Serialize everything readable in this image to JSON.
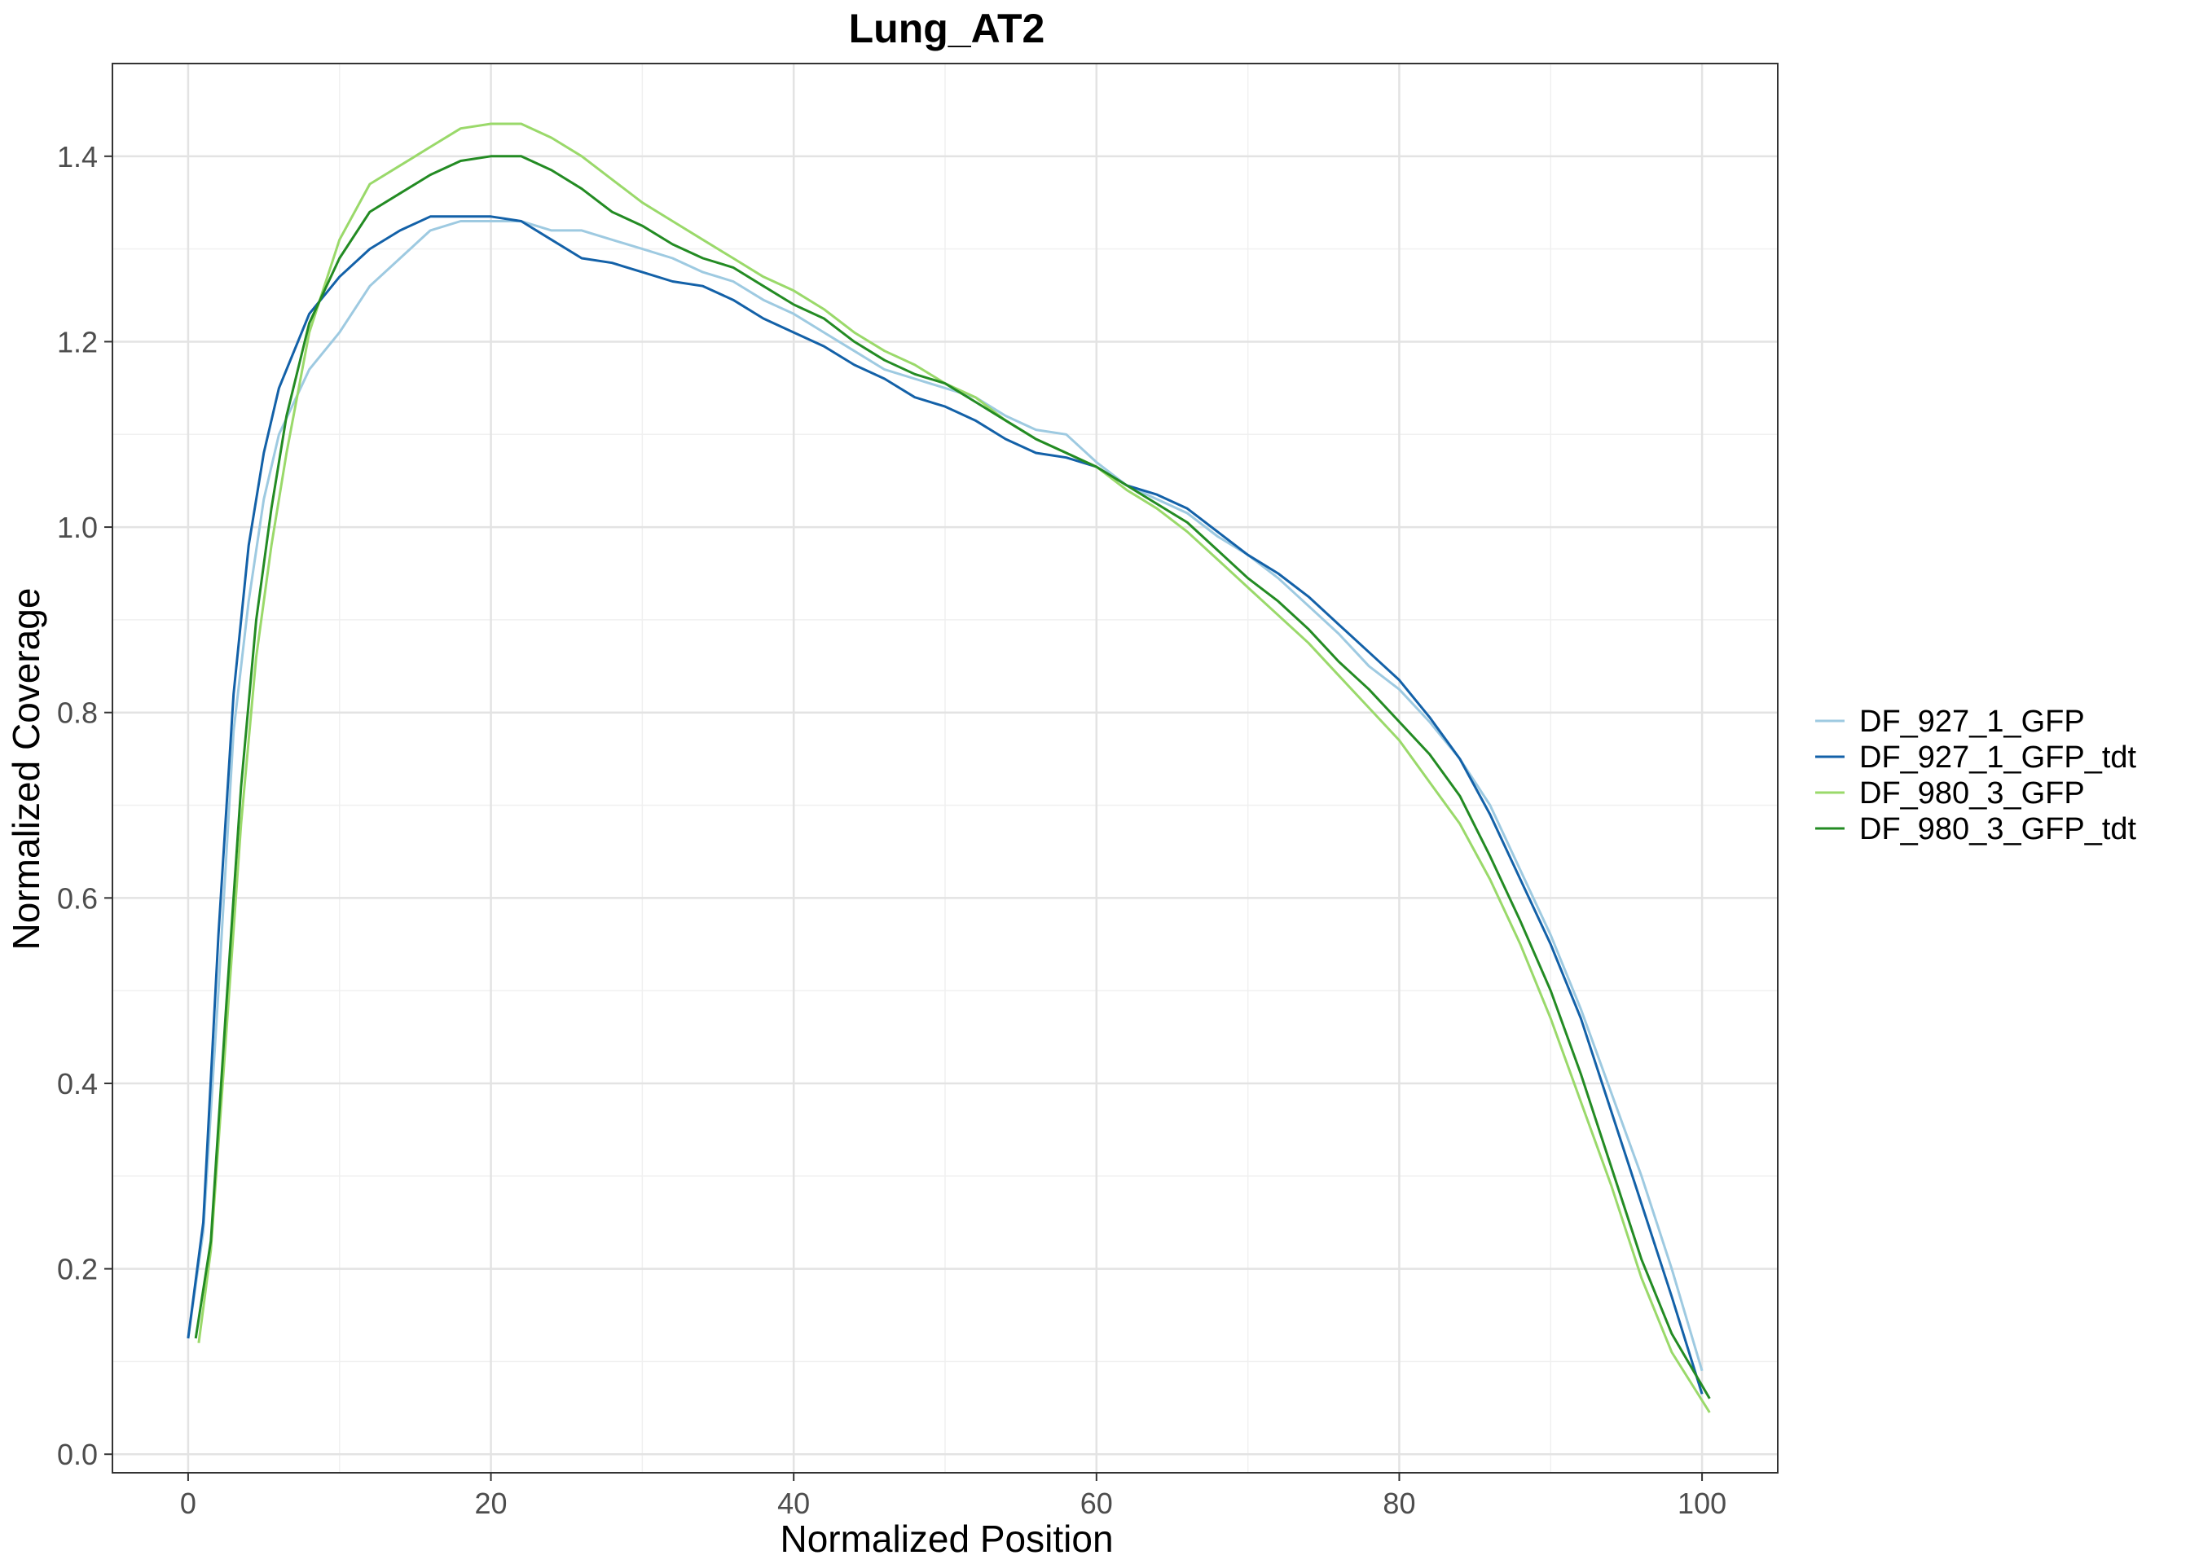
{
  "chart_data": {
    "type": "line",
    "title": "Lung_AT2",
    "xlabel": "Normalized Position",
    "ylabel": "Normalized Coverage",
    "xlim": [
      -5,
      105
    ],
    "ylim": [
      -0.02,
      1.5
    ],
    "xticks": [
      0,
      20,
      40,
      60,
      80,
      100
    ],
    "xtick_labels": [
      "0",
      "20",
      "40",
      "60",
      "80",
      "100"
    ],
    "yticks": [
      0.0,
      0.2,
      0.4,
      0.6,
      0.8,
      1.0,
      1.2,
      1.4
    ],
    "ytick_labels": [
      "0.0",
      "0.2",
      "0.4",
      "0.6",
      "0.8",
      "1.0",
      "1.2",
      "1.4"
    ],
    "grid": true,
    "legend_position": "right",
    "series": [
      {
        "name": "DF_927_1_GFP",
        "color": "#9ecae1",
        "points": [
          [
            0,
            0.125
          ],
          [
            1,
            0.24
          ],
          [
            2,
            0.5
          ],
          [
            3,
            0.78
          ],
          [
            4,
            0.92
          ],
          [
            5,
            1.03
          ],
          [
            6,
            1.1
          ],
          [
            8,
            1.17
          ],
          [
            10,
            1.21
          ],
          [
            12,
            1.26
          ],
          [
            14,
            1.29
          ],
          [
            16,
            1.32
          ],
          [
            18,
            1.33
          ],
          [
            20,
            1.33
          ],
          [
            22,
            1.33
          ],
          [
            24,
            1.32
          ],
          [
            26,
            1.32
          ],
          [
            28,
            1.31
          ],
          [
            30,
            1.3
          ],
          [
            32,
            1.29
          ],
          [
            34,
            1.275
          ],
          [
            36,
            1.265
          ],
          [
            38,
            1.245
          ],
          [
            40,
            1.23
          ],
          [
            42,
            1.21
          ],
          [
            44,
            1.19
          ],
          [
            46,
            1.17
          ],
          [
            48,
            1.16
          ],
          [
            50,
            1.15
          ],
          [
            52,
            1.14
          ],
          [
            54,
            1.12
          ],
          [
            56,
            1.105
          ],
          [
            58,
            1.1
          ],
          [
            60,
            1.07
          ],
          [
            62,
            1.045
          ],
          [
            64,
            1.03
          ],
          [
            66,
            1.015
          ],
          [
            68,
            0.99
          ],
          [
            70,
            0.97
          ],
          [
            72,
            0.945
          ],
          [
            74,
            0.915
          ],
          [
            76,
            0.885
          ],
          [
            78,
            0.85
          ],
          [
            80,
            0.825
          ],
          [
            82,
            0.79
          ],
          [
            84,
            0.75
          ],
          [
            86,
            0.7
          ],
          [
            88,
            0.63
          ],
          [
            90,
            0.56
          ],
          [
            92,
            0.48
          ],
          [
            94,
            0.39
          ],
          [
            96,
            0.3
          ],
          [
            98,
            0.2
          ],
          [
            100,
            0.09
          ]
        ]
      },
      {
        "name": "DF_927_1_GFP_tdt",
        "color": "#1361a8",
        "points": [
          [
            0,
            0.125
          ],
          [
            1,
            0.25
          ],
          [
            2,
            0.56
          ],
          [
            3,
            0.82
          ],
          [
            4,
            0.98
          ],
          [
            5,
            1.08
          ],
          [
            6,
            1.15
          ],
          [
            8,
            1.23
          ],
          [
            10,
            1.27
          ],
          [
            12,
            1.3
          ],
          [
            14,
            1.32
          ],
          [
            16,
            1.335
          ],
          [
            18,
            1.335
          ],
          [
            20,
            1.335
          ],
          [
            22,
            1.33
          ],
          [
            24,
            1.31
          ],
          [
            26,
            1.29
          ],
          [
            28,
            1.285
          ],
          [
            30,
            1.275
          ],
          [
            32,
            1.265
          ],
          [
            34,
            1.26
          ],
          [
            36,
            1.245
          ],
          [
            38,
            1.225
          ],
          [
            40,
            1.21
          ],
          [
            42,
            1.195
          ],
          [
            44,
            1.175
          ],
          [
            46,
            1.16
          ],
          [
            48,
            1.14
          ],
          [
            50,
            1.13
          ],
          [
            52,
            1.115
          ],
          [
            54,
            1.095
          ],
          [
            56,
            1.08
          ],
          [
            58,
            1.075
          ],
          [
            60,
            1.065
          ],
          [
            62,
            1.045
          ],
          [
            64,
            1.035
          ],
          [
            66,
            1.02
          ],
          [
            68,
            0.995
          ],
          [
            70,
            0.97
          ],
          [
            72,
            0.95
          ],
          [
            74,
            0.925
          ],
          [
            76,
            0.895
          ],
          [
            78,
            0.865
          ],
          [
            80,
            0.835
          ],
          [
            82,
            0.795
          ],
          [
            84,
            0.75
          ],
          [
            86,
            0.69
          ],
          [
            88,
            0.62
          ],
          [
            90,
            0.55
          ],
          [
            92,
            0.47
          ],
          [
            94,
            0.37
          ],
          [
            96,
            0.27
          ],
          [
            98,
            0.17
          ],
          [
            100,
            0.065
          ]
        ]
      },
      {
        "name": "DF_980_3_GFP",
        "color": "#9ad96a",
        "points": [
          [
            0.7,
            0.12
          ],
          [
            1.5,
            0.22
          ],
          [
            2.5,
            0.45
          ],
          [
            3.5,
            0.68
          ],
          [
            4.5,
            0.86
          ],
          [
            5.5,
            0.98
          ],
          [
            6.5,
            1.08
          ],
          [
            8,
            1.21
          ],
          [
            10,
            1.31
          ],
          [
            12,
            1.37
          ],
          [
            14,
            1.39
          ],
          [
            16,
            1.41
          ],
          [
            18,
            1.43
          ],
          [
            20,
            1.435
          ],
          [
            22,
            1.435
          ],
          [
            24,
            1.42
          ],
          [
            26,
            1.4
          ],
          [
            28,
            1.375
          ],
          [
            30,
            1.35
          ],
          [
            32,
            1.33
          ],
          [
            34,
            1.31
          ],
          [
            36,
            1.29
          ],
          [
            38,
            1.27
          ],
          [
            40,
            1.255
          ],
          [
            42,
            1.235
          ],
          [
            44,
            1.21
          ],
          [
            46,
            1.19
          ],
          [
            48,
            1.175
          ],
          [
            50,
            1.155
          ],
          [
            52,
            1.14
          ],
          [
            54,
            1.115
          ],
          [
            56,
            1.095
          ],
          [
            58,
            1.08
          ],
          [
            60,
            1.065
          ],
          [
            62,
            1.04
          ],
          [
            64,
            1.02
          ],
          [
            66,
            0.995
          ],
          [
            68,
            0.965
          ],
          [
            70,
            0.935
          ],
          [
            72,
            0.905
          ],
          [
            74,
            0.875
          ],
          [
            76,
            0.84
          ],
          [
            78,
            0.805
          ],
          [
            80,
            0.77
          ],
          [
            82,
            0.725
          ],
          [
            84,
            0.68
          ],
          [
            86,
            0.62
          ],
          [
            88,
            0.55
          ],
          [
            90,
            0.47
          ],
          [
            92,
            0.38
          ],
          [
            94,
            0.29
          ],
          [
            96,
            0.19
          ],
          [
            98,
            0.11
          ],
          [
            100.5,
            0.045
          ]
        ]
      },
      {
        "name": "DF_980_3_GFP_tdt",
        "color": "#238b23",
        "points": [
          [
            0.5,
            0.125
          ],
          [
            1.5,
            0.23
          ],
          [
            2.5,
            0.48
          ],
          [
            3.5,
            0.72
          ],
          [
            4.5,
            0.9
          ],
          [
            5.5,
            1.02
          ],
          [
            6.5,
            1.12
          ],
          [
            8,
            1.22
          ],
          [
            10,
            1.29
          ],
          [
            12,
            1.34
          ],
          [
            14,
            1.36
          ],
          [
            16,
            1.38
          ],
          [
            18,
            1.395
          ],
          [
            20,
            1.4
          ],
          [
            22,
            1.4
          ],
          [
            24,
            1.385
          ],
          [
            26,
            1.365
          ],
          [
            28,
            1.34
          ],
          [
            30,
            1.325
          ],
          [
            32,
            1.305
          ],
          [
            34,
            1.29
          ],
          [
            36,
            1.28
          ],
          [
            38,
            1.26
          ],
          [
            40,
            1.24
          ],
          [
            42,
            1.225
          ],
          [
            44,
            1.2
          ],
          [
            46,
            1.18
          ],
          [
            48,
            1.165
          ],
          [
            50,
            1.155
          ],
          [
            52,
            1.135
          ],
          [
            54,
            1.115
          ],
          [
            56,
            1.095
          ],
          [
            58,
            1.08
          ],
          [
            60,
            1.065
          ],
          [
            62,
            1.045
          ],
          [
            64,
            1.025
          ],
          [
            66,
            1.005
          ],
          [
            68,
            0.975
          ],
          [
            70,
            0.945
          ],
          [
            72,
            0.92
          ],
          [
            74,
            0.89
          ],
          [
            76,
            0.855
          ],
          [
            78,
            0.825
          ],
          [
            80,
            0.79
          ],
          [
            82,
            0.755
          ],
          [
            84,
            0.71
          ],
          [
            86,
            0.645
          ],
          [
            88,
            0.575
          ],
          [
            90,
            0.5
          ],
          [
            92,
            0.41
          ],
          [
            94,
            0.31
          ],
          [
            96,
            0.21
          ],
          [
            98,
            0.13
          ],
          [
            100.5,
            0.06
          ]
        ]
      }
    ]
  }
}
